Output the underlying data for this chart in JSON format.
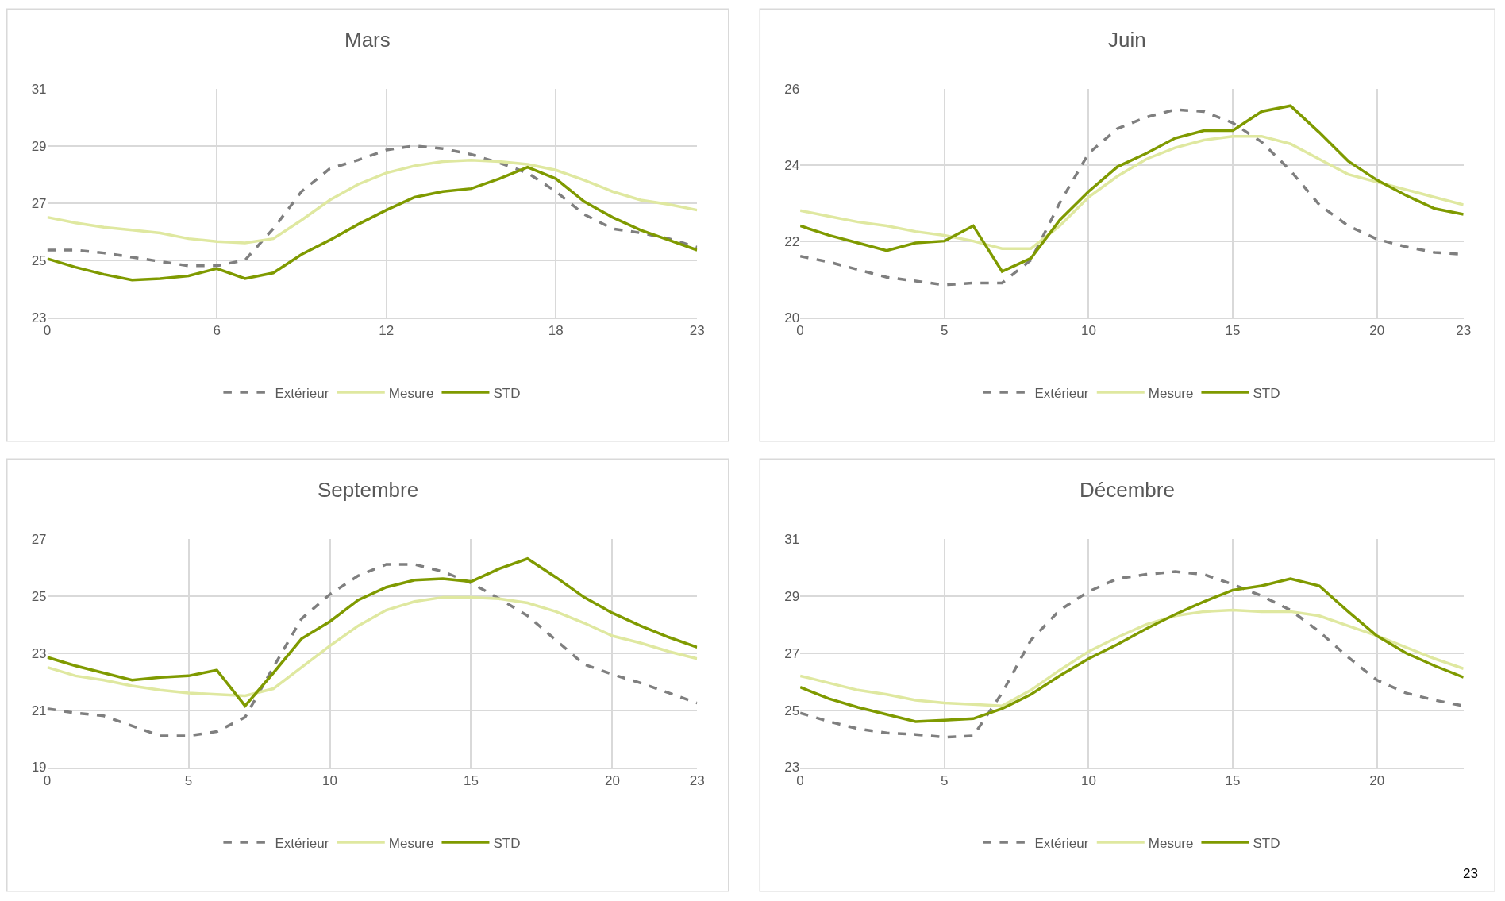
{
  "chart_data": [
    {
      "type": "line",
      "title": "Mars",
      "x": [
        0,
        1,
        2,
        3,
        4,
        5,
        6,
        7,
        8,
        9,
        10,
        11,
        12,
        13,
        14,
        15,
        16,
        17,
        18,
        19,
        20,
        21,
        22,
        23
      ],
      "xlim": [
        0,
        23
      ],
      "xticks": [
        0,
        6,
        12,
        18,
        23
      ],
      "ylim": [
        23,
        31
      ],
      "yticks": [
        23,
        25,
        27,
        29,
        31
      ],
      "grid": true,
      "legend": "bottom",
      "series": [
        {
          "name": "Extérieur",
          "color": "#7f7f7f",
          "line_style": "dashed",
          "values": [
            25.35,
            25.35,
            25.25,
            25.1,
            24.95,
            24.8,
            24.8,
            25.0,
            26.1,
            27.4,
            28.2,
            28.5,
            28.85,
            29.0,
            28.9,
            28.7,
            28.4,
            28.05,
            27.4,
            26.6,
            26.1,
            25.95,
            25.75,
            25.45
          ]
        },
        {
          "name": "Mesure",
          "color": "#dfe8a0",
          "line_style": "solid",
          "values": [
            26.5,
            26.3,
            26.15,
            26.05,
            25.95,
            25.75,
            25.65,
            25.6,
            25.75,
            26.4,
            27.1,
            27.65,
            28.05,
            28.3,
            28.45,
            28.5,
            28.45,
            28.35,
            28.15,
            27.8,
            27.4,
            27.1,
            26.95,
            26.75
          ]
        },
        {
          "name": "STD",
          "color": "#7f9a00",
          "line_style": "solid",
          "values": [
            25.05,
            24.75,
            24.5,
            24.3,
            24.35,
            24.45,
            24.7,
            24.35,
            24.55,
            25.2,
            25.7,
            26.25,
            26.75,
            27.2,
            27.4,
            27.5,
            27.85,
            28.25,
            27.85,
            27.05,
            26.5,
            26.05,
            25.7,
            25.35
          ]
        }
      ]
    },
    {
      "type": "line",
      "title": "Juin",
      "x": [
        0,
        1,
        2,
        3,
        4,
        5,
        6,
        7,
        8,
        9,
        10,
        11,
        12,
        13,
        14,
        15,
        16,
        17,
        18,
        19,
        20,
        21,
        22,
        23
      ],
      "xlim": [
        0,
        23
      ],
      "xticks": [
        0,
        5,
        10,
        15,
        20,
        23
      ],
      "ylim": [
        20,
        26
      ],
      "yticks": [
        20,
        22,
        24,
        26
      ],
      "grid": true,
      "legend": "bottom",
      "series": [
        {
          "name": "Extérieur",
          "color": "#7f7f7f",
          "line_style": "dashed",
          "values": [
            21.6,
            21.45,
            21.25,
            21.05,
            20.95,
            20.85,
            20.9,
            20.9,
            21.5,
            23.0,
            24.3,
            24.95,
            25.25,
            25.45,
            25.4,
            25.1,
            24.6,
            23.85,
            22.95,
            22.4,
            22.05,
            21.85,
            21.7,
            21.65
          ]
        },
        {
          "name": "Mesure",
          "color": "#dfe8a0",
          "line_style": "solid",
          "values": [
            22.8,
            22.65,
            22.5,
            22.4,
            22.25,
            22.15,
            22.0,
            21.8,
            21.8,
            22.4,
            23.15,
            23.7,
            24.15,
            24.45,
            24.65,
            24.75,
            24.75,
            24.55,
            24.15,
            23.75,
            23.55,
            23.35,
            23.15,
            22.95
          ]
        },
        {
          "name": "STD",
          "color": "#7f9a00",
          "line_style": "solid",
          "values": [
            22.4,
            22.15,
            21.95,
            21.75,
            21.95,
            22.0,
            22.4,
            21.2,
            21.55,
            22.55,
            23.3,
            23.95,
            24.3,
            24.7,
            24.9,
            24.9,
            25.4,
            25.55,
            24.85,
            24.1,
            23.6,
            23.2,
            22.85,
            22.7
          ]
        }
      ]
    },
    {
      "type": "line",
      "title": "Septembre",
      "x": [
        0,
        1,
        2,
        3,
        4,
        5,
        6,
        7,
        8,
        9,
        10,
        11,
        12,
        13,
        14,
        15,
        16,
        17,
        18,
        19,
        20,
        21,
        22,
        23
      ],
      "xlim": [
        0,
        23
      ],
      "xticks": [
        0,
        5,
        10,
        15,
        20,
        23
      ],
      "ylim": [
        19,
        27
      ],
      "yticks": [
        19,
        21,
        23,
        25,
        27
      ],
      "grid": true,
      "legend": "bottom",
      "series": [
        {
          "name": "Extérieur",
          "color": "#7f7f7f",
          "line_style": "dashed",
          "values": [
            21.05,
            20.9,
            20.8,
            20.45,
            20.1,
            20.1,
            20.25,
            20.75,
            22.5,
            24.2,
            25.05,
            25.7,
            26.1,
            26.1,
            25.85,
            25.45,
            24.9,
            24.3,
            23.45,
            22.6,
            22.25,
            21.95,
            21.6,
            21.25
          ]
        },
        {
          "name": "Mesure",
          "color": "#dfe8a0",
          "line_style": "solid",
          "values": [
            22.5,
            22.2,
            22.05,
            21.85,
            21.7,
            21.6,
            21.55,
            21.5,
            21.75,
            22.5,
            23.25,
            23.95,
            24.5,
            24.8,
            24.95,
            24.95,
            24.9,
            24.75,
            24.45,
            24.05,
            23.6,
            23.35,
            23.05,
            22.8
          ]
        },
        {
          "name": "STD",
          "color": "#7f9a00",
          "line_style": "solid",
          "values": [
            22.85,
            22.55,
            22.3,
            22.05,
            22.15,
            22.2,
            22.4,
            21.15,
            22.3,
            23.5,
            24.1,
            24.85,
            25.3,
            25.55,
            25.6,
            25.5,
            25.95,
            26.3,
            25.65,
            24.95,
            24.4,
            23.95,
            23.55,
            23.2
          ]
        }
      ]
    },
    {
      "type": "line",
      "title": "Décembre",
      "x": [
        0,
        1,
        2,
        3,
        4,
        5,
        6,
        7,
        8,
        9,
        10,
        11,
        12,
        13,
        14,
        15,
        16,
        17,
        18,
        19,
        20,
        21,
        22,
        23
      ],
      "xlim": [
        0,
        23
      ],
      "xticks": [
        0,
        5,
        10,
        15,
        20
      ],
      "ylim": [
        23,
        31
      ],
      "yticks": [
        23,
        25,
        27,
        29,
        31
      ],
      "grid": true,
      "legend": "bottom",
      "annotations": [
        "23"
      ],
      "series": [
        {
          "name": "Extérieur",
          "color": "#7f7f7f",
          "line_style": "dashed",
          "values": [
            24.9,
            24.6,
            24.35,
            24.2,
            24.15,
            24.05,
            24.1,
            25.6,
            27.45,
            28.5,
            29.15,
            29.6,
            29.75,
            29.85,
            29.75,
            29.4,
            29.0,
            28.5,
            27.75,
            26.85,
            26.05,
            25.6,
            25.35,
            25.15
          ]
        },
        {
          "name": "Mesure",
          "color": "#dfe8a0",
          "line_style": "solid",
          "values": [
            26.2,
            25.95,
            25.7,
            25.55,
            25.35,
            25.25,
            25.2,
            25.15,
            25.7,
            26.4,
            27.05,
            27.55,
            28.0,
            28.3,
            28.45,
            28.5,
            28.45,
            28.45,
            28.3,
            27.95,
            27.6,
            27.2,
            26.8,
            26.45
          ]
        },
        {
          "name": "STD",
          "color": "#7f9a00",
          "line_style": "solid",
          "values": [
            25.8,
            25.4,
            25.1,
            24.85,
            24.6,
            24.65,
            24.7,
            25.05,
            25.55,
            26.2,
            26.8,
            27.3,
            27.85,
            28.35,
            28.8,
            29.2,
            29.35,
            29.6,
            29.35,
            28.45,
            27.6,
            27.0,
            26.55,
            26.15
          ]
        }
      ]
    }
  ]
}
